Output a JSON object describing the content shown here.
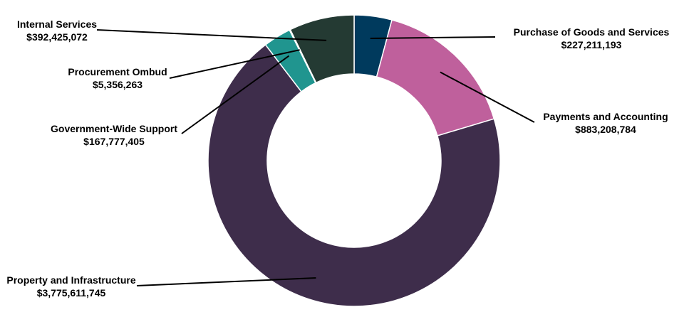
{
  "chart_data": {
    "type": "pie",
    "variant": "donut",
    "title": "",
    "legend": "none",
    "slices": [
      {
        "name": "Purchase of Goods and Services",
        "value_label": "$227,211,193",
        "value": 227211193,
        "color": "#003a5d"
      },
      {
        "name": "Payments and Accounting",
        "value_label": "$883,208,784",
        "value": 883208784,
        "color": "#bf609c"
      },
      {
        "name": "Property and Infrastructure",
        "value_label": "$3,775,611,745",
        "value": 3775611745,
        "color": "#3e2d4b"
      },
      {
        "name": "Government-Wide Support",
        "value_label": "$167,777,405",
        "value": 167777405,
        "color": "#20958f"
      },
      {
        "name": "Procurement Ombud",
        "value_label": "$5,356,263",
        "value": 5356263,
        "color": "#6b6b6b"
      },
      {
        "name": "Internal Services",
        "value_label": "$392,425,072",
        "value": 392425072,
        "color": "#243a33"
      }
    ]
  }
}
